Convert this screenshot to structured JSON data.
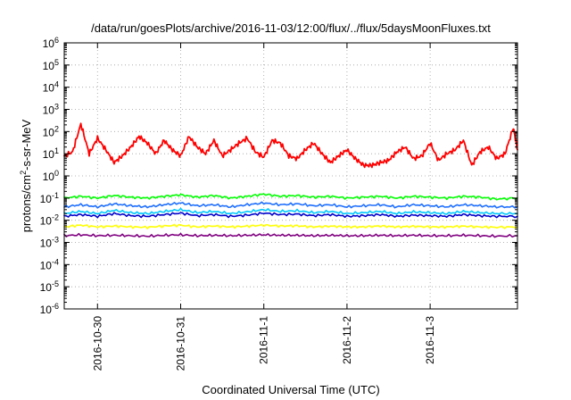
{
  "chart_data": {
    "type": "line",
    "title": "/data/run/goesPlots/archive/2016-11-03/12:00/flux/../flux/5daysMoonFluxes.txt",
    "xlabel": "Coordinated Universal Time (UTC)",
    "ylabel": {
      "base": "protons/cm",
      "sup": "2",
      "rest": "-s-sr-MeV"
    },
    "yscale": "log",
    "ylim": [
      1e-06,
      1000000.0
    ],
    "xlim": [
      -0.4,
      5.05
    ],
    "grid": true,
    "x_unit": "days after 2016-10-30 00:00 UTC",
    "x_ticks": [
      {
        "x": 0,
        "label": "2016-10-30"
      },
      {
        "x": 1,
        "label": "2016-10-31"
      },
      {
        "x": 2,
        "label": "2016-11-1"
      },
      {
        "x": 3,
        "label": "2016-11-2"
      },
      {
        "x": 4,
        "label": "2016-11-3"
      }
    ],
    "y_ticks": [
      {
        "v": 1e-06,
        "base": "10",
        "exp": "-6"
      },
      {
        "v": 1e-05,
        "base": "10",
        "exp": "-5"
      },
      {
        "v": 0.0001,
        "base": "10",
        "exp": "-4"
      },
      {
        "v": 0.001,
        "base": "10",
        "exp": "-3"
      },
      {
        "v": 0.01,
        "base": "10",
        "exp": "-2"
      },
      {
        "v": 0.1,
        "base": "10",
        "exp": "-1"
      },
      {
        "v": 1,
        "base": "10",
        "exp": "0"
      },
      {
        "v": 10.0,
        "base": "10",
        "exp": "1"
      },
      {
        "v": 100.0,
        "base": "10",
        "exp": "2"
      },
      {
        "v": 1000.0,
        "base": "10",
        "exp": "3"
      },
      {
        "v": 10000.0,
        "base": "10",
        "exp": "4"
      },
      {
        "v": 100000.0,
        "base": "10",
        "exp": "5"
      },
      {
        "v": 1000000.0,
        "base": "10",
        "exp": "6"
      }
    ],
    "series": [
      {
        "color": "#ff0000",
        "x": [
          -0.4,
          -0.3,
          -0.2,
          -0.1,
          0.0,
          0.1,
          0.2,
          0.3,
          0.4,
          0.5,
          0.6,
          0.7,
          0.8,
          0.9,
          1.0,
          1.1,
          1.2,
          1.3,
          1.4,
          1.5,
          1.6,
          1.7,
          1.8,
          1.9,
          2.0,
          2.1,
          2.2,
          2.3,
          2.4,
          2.5,
          2.6,
          2.7,
          2.8,
          2.9,
          3.0,
          3.1,
          3.2,
          3.3,
          3.4,
          3.5,
          3.6,
          3.7,
          3.8,
          3.9,
          4.0,
          4.1,
          4.2,
          4.3,
          4.4,
          4.5,
          4.6,
          4.7,
          4.8,
          4.9,
          5.0,
          5.05
        ],
        "y": [
          8,
          12,
          220,
          10,
          50,
          15,
          4,
          8,
          20,
          60,
          30,
          10,
          40,
          15,
          8,
          60,
          20,
          10,
          40,
          8,
          15,
          30,
          50,
          12,
          7,
          40,
          30,
          8,
          6,
          15,
          30,
          10,
          4,
          8,
          15,
          6,
          3,
          3,
          4,
          5,
          12,
          20,
          6,
          8,
          30,
          5,
          10,
          15,
          40,
          3,
          12,
          20,
          6,
          10,
          150,
          15
        ]
      },
      {
        "color": "#00ff00",
        "x": [
          -0.4,
          -0.2,
          0.0,
          0.2,
          0.4,
          0.6,
          0.8,
          1.0,
          1.2,
          1.4,
          1.6,
          1.8,
          2.0,
          2.2,
          2.4,
          2.6,
          2.8,
          3.0,
          3.2,
          3.4,
          3.6,
          3.8,
          4.0,
          4.2,
          4.4,
          4.6,
          4.8,
          5.05
        ],
        "y": [
          0.1,
          0.12,
          0.1,
          0.13,
          0.11,
          0.1,
          0.12,
          0.14,
          0.11,
          0.13,
          0.1,
          0.12,
          0.15,
          0.12,
          0.13,
          0.11,
          0.12,
          0.1,
          0.11,
          0.12,
          0.1,
          0.12,
          0.11,
          0.1,
          0.12,
          0.11,
          0.09,
          0.1
        ]
      },
      {
        "color": "#1e6fff",
        "x": [
          -0.4,
          -0.2,
          0.0,
          0.2,
          0.4,
          0.6,
          0.8,
          1.0,
          1.2,
          1.4,
          1.6,
          1.8,
          2.0,
          2.2,
          2.4,
          2.6,
          2.8,
          3.0,
          3.2,
          3.4,
          3.6,
          3.8,
          4.0,
          4.2,
          4.4,
          4.6,
          4.8,
          5.05
        ],
        "y": [
          0.04,
          0.05,
          0.04,
          0.055,
          0.045,
          0.04,
          0.05,
          0.06,
          0.045,
          0.05,
          0.04,
          0.05,
          0.06,
          0.05,
          0.055,
          0.045,
          0.05,
          0.04,
          0.045,
          0.05,
          0.04,
          0.05,
          0.045,
          0.04,
          0.05,
          0.045,
          0.04,
          0.04
        ]
      },
      {
        "color": "#00c8ff",
        "x": [
          -0.4,
          -0.2,
          0.0,
          0.2,
          0.4,
          0.6,
          0.8,
          1.0,
          1.2,
          1.4,
          1.6,
          1.8,
          2.0,
          2.2,
          2.4,
          2.6,
          2.8,
          3.0,
          3.2,
          3.4,
          3.6,
          3.8,
          4.0,
          4.2,
          4.4,
          4.6,
          4.8,
          5.05
        ],
        "y": [
          0.02,
          0.025,
          0.02,
          0.028,
          0.022,
          0.02,
          0.025,
          0.03,
          0.022,
          0.025,
          0.02,
          0.024,
          0.03,
          0.025,
          0.027,
          0.022,
          0.025,
          0.02,
          0.022,
          0.025,
          0.02,
          0.024,
          0.022,
          0.02,
          0.025,
          0.022,
          0.02,
          0.02
        ]
      },
      {
        "color": "#0000cc",
        "x": [
          -0.4,
          -0.2,
          0.0,
          0.2,
          0.4,
          0.6,
          0.8,
          1.0,
          1.2,
          1.4,
          1.6,
          1.8,
          2.0,
          2.2,
          2.4,
          2.6,
          2.8,
          3.0,
          3.2,
          3.4,
          3.6,
          3.8,
          4.0,
          4.2,
          4.4,
          4.6,
          4.8,
          5.05
        ],
        "y": [
          0.015,
          0.018,
          0.015,
          0.02,
          0.016,
          0.015,
          0.018,
          0.021,
          0.016,
          0.018,
          0.015,
          0.017,
          0.021,
          0.018,
          0.019,
          0.016,
          0.018,
          0.015,
          0.016,
          0.018,
          0.015,
          0.017,
          0.016,
          0.015,
          0.018,
          0.016,
          0.015,
          0.015
        ]
      },
      {
        "color": "#ffff00",
        "x": [
          -0.4,
          -0.2,
          0.0,
          0.2,
          0.4,
          0.6,
          0.8,
          1.0,
          1.2,
          1.4,
          1.6,
          1.8,
          2.0,
          2.2,
          2.4,
          2.6,
          2.8,
          3.0,
          3.2,
          3.4,
          3.6,
          3.8,
          4.0,
          4.2,
          4.4,
          4.6,
          4.8,
          5.05
        ],
        "y": [
          0.005,
          0.006,
          0.005,
          0.0055,
          0.005,
          0.0048,
          0.0055,
          0.006,
          0.005,
          0.0055,
          0.005,
          0.0054,
          0.006,
          0.0055,
          0.0056,
          0.005,
          0.0054,
          0.005,
          0.005,
          0.0055,
          0.005,
          0.0053,
          0.005,
          0.005,
          0.0054,
          0.005,
          0.0048,
          0.005
        ]
      },
      {
        "color": "#800080",
        "x": [
          -0.4,
          -0.2,
          0.0,
          0.2,
          0.4,
          0.6,
          0.8,
          1.0,
          1.2,
          1.4,
          1.6,
          1.8,
          2.0,
          2.2,
          2.4,
          2.6,
          2.8,
          3.0,
          3.2,
          3.4,
          3.6,
          3.8,
          4.0,
          4.2,
          4.4,
          4.6,
          4.8,
          5.05
        ],
        "y": [
          0.002,
          0.0022,
          0.002,
          0.0021,
          0.002,
          0.0019,
          0.0021,
          0.0022,
          0.002,
          0.0021,
          0.002,
          0.0021,
          0.0022,
          0.0021,
          0.0021,
          0.002,
          0.0021,
          0.002,
          0.002,
          0.0021,
          0.002,
          0.0021,
          0.002,
          0.002,
          0.0021,
          0.002,
          0.0019,
          0.002
        ]
      }
    ]
  }
}
